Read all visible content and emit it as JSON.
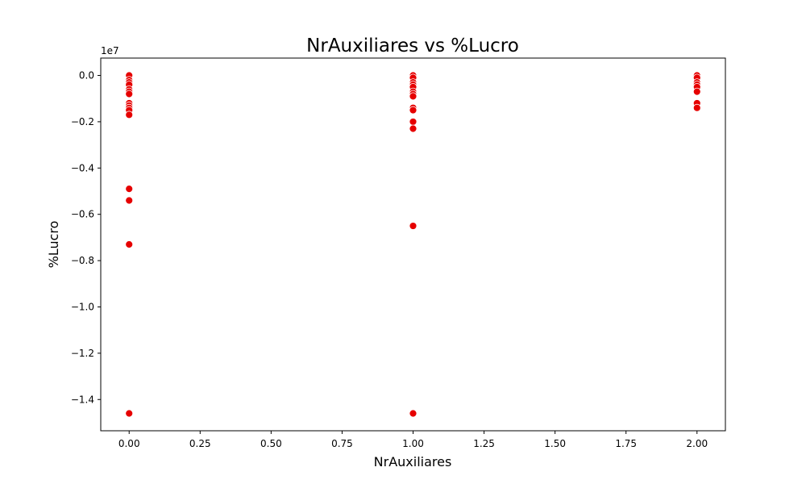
{
  "chart_data": {
    "type": "scatter",
    "title": "NrAuxiliares vs %Lucro",
    "xlabel": "NrAuxiliares",
    "ylabel": "%Lucro",
    "y_offset_label": "1e7",
    "xlim": [
      -0.1,
      2.1
    ],
    "ylim": [
      -15.35,
      0.75
    ],
    "x_ticks": [
      0.0,
      0.25,
      0.5,
      0.75,
      1.0,
      1.25,
      1.5,
      1.75,
      2.0
    ],
    "x_tick_labels": [
      "0.00",
      "0.25",
      "0.50",
      "0.75",
      "1.00",
      "1.25",
      "1.50",
      "1.75",
      "2.00"
    ],
    "y_ticks": [
      0.0,
      -2.0,
      -4.0,
      -6.0,
      -8.0,
      -10.0,
      -12.0,
      -14.0
    ],
    "y_tick_labels": [
      "0.0",
      "−0.2",
      "−0.4",
      "−0.6",
      "−0.8",
      "−1.0",
      "−1.2",
      "−1.4"
    ],
    "grid": false,
    "marker_color": "#e60000",
    "marker_edge_color": "#ffffff",
    "points": [
      {
        "x": 0,
        "y": 0.0
      },
      {
        "x": 0,
        "y": -0.2
      },
      {
        "x": 0,
        "y": -0.3
      },
      {
        "x": 0,
        "y": -0.4
      },
      {
        "x": 0,
        "y": -0.6
      },
      {
        "x": 0,
        "y": -0.7
      },
      {
        "x": 0,
        "y": -0.8
      },
      {
        "x": 0,
        "y": -1.2
      },
      {
        "x": 0,
        "y": -1.3
      },
      {
        "x": 0,
        "y": -1.4
      },
      {
        "x": 0,
        "y": -1.5
      },
      {
        "x": 0,
        "y": -1.7
      },
      {
        "x": 0,
        "y": -4.9
      },
      {
        "x": 0,
        "y": -5.4
      },
      {
        "x": 0,
        "y": -7.3
      },
      {
        "x": 0,
        "y": -14.6
      },
      {
        "x": 1,
        "y": 0.0
      },
      {
        "x": 1,
        "y": -0.1
      },
      {
        "x": 1,
        "y": -0.3
      },
      {
        "x": 1,
        "y": -0.4
      },
      {
        "x": 1,
        "y": -0.5
      },
      {
        "x": 1,
        "y": -0.7
      },
      {
        "x": 1,
        "y": -0.8
      },
      {
        "x": 1,
        "y": -0.9
      },
      {
        "x": 1,
        "y": -1.4
      },
      {
        "x": 1,
        "y": -1.5
      },
      {
        "x": 1,
        "y": -2.0
      },
      {
        "x": 1,
        "y": -2.3
      },
      {
        "x": 1,
        "y": -6.5
      },
      {
        "x": 1,
        "y": -14.6
      },
      {
        "x": 2,
        "y": 0.0
      },
      {
        "x": 2,
        "y": -0.1
      },
      {
        "x": 2,
        "y": -0.3
      },
      {
        "x": 2,
        "y": -0.4
      },
      {
        "x": 2,
        "y": -0.5
      },
      {
        "x": 2,
        "y": -0.7
      },
      {
        "x": 2,
        "y": -1.2
      },
      {
        "x": 2,
        "y": -1.4
      }
    ]
  }
}
